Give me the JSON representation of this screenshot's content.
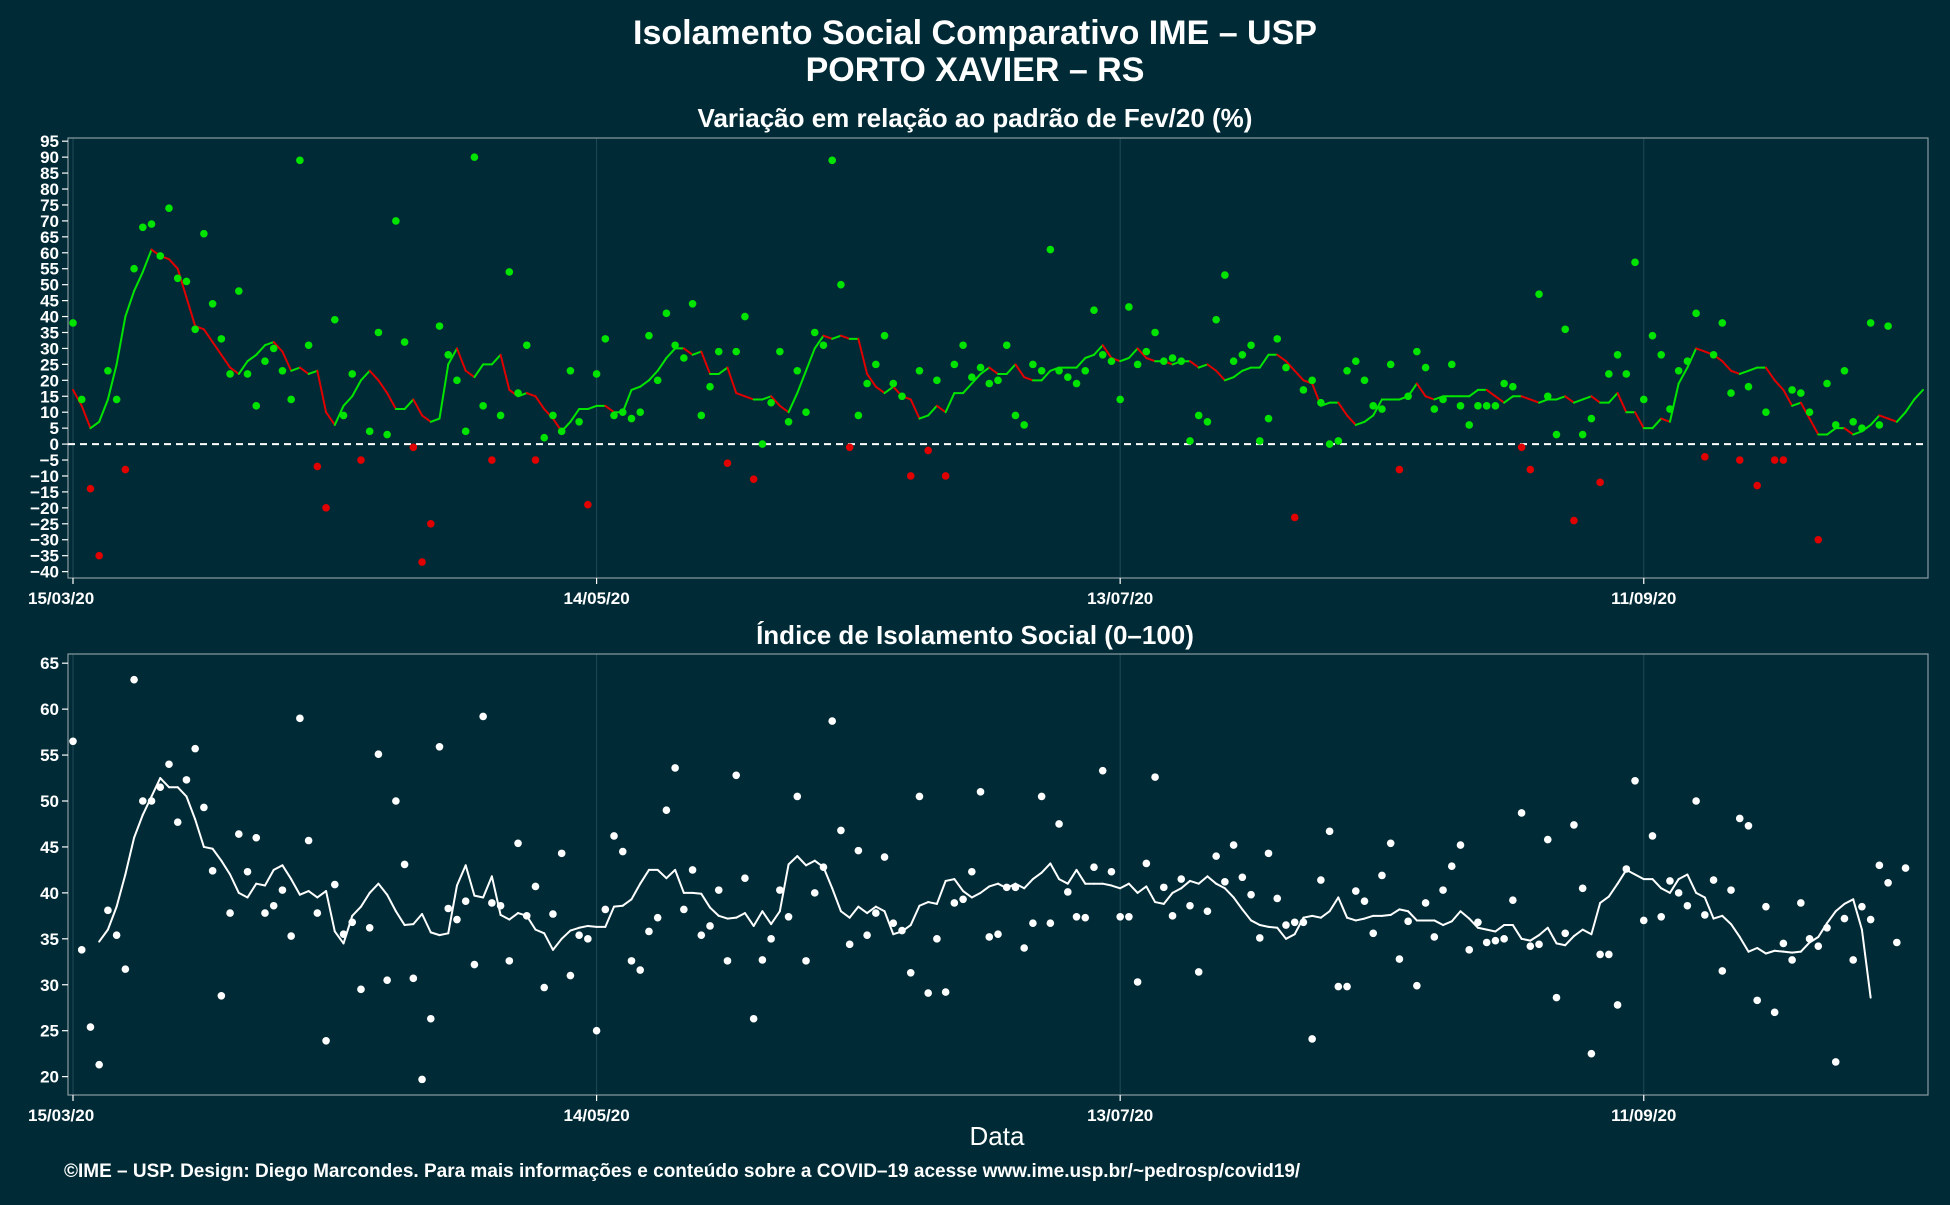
{
  "title_line1": "Isolamento Social Comparativo IME – USP",
  "title_line2": "PORTO XAVIER – RS",
  "caption": "©IME – USP. Design: Diego Marcondes. Para mais informações e conteúdo sobre a COVID–19 acesse www.ime.usp.br/~pedrosp/covid19/",
  "xlabel": "Data",
  "colors": {
    "background": "#002b36",
    "positive": "#00e400",
    "negative": "#e00000",
    "index": "#ffffff",
    "zero_line": "#ffffff"
  },
  "chart_data": [
    {
      "type": "scatter",
      "title": "Variação em relação ao padrão de Fev/20 (%)",
      "x_start": "15/03/20",
      "x_ticks": [
        "15/03/20",
        "14/05/20",
        "13/07/20",
        "11/09/20"
      ],
      "x_tick_day_index": [
        0,
        60,
        120,
        180
      ],
      "ylim": [
        -42,
        96
      ],
      "y_ticks": [
        -40,
        -35,
        -30,
        -25,
        -20,
        -15,
        -10,
        -5,
        0,
        5,
        10,
        15,
        20,
        25,
        30,
        35,
        40,
        45,
        50,
        55,
        60,
        65,
        70,
        75,
        80,
        85,
        90,
        95
      ],
      "reference_line": 0,
      "grid": true,
      "series": [
        {
          "kind": "points",
          "values": [
            38,
            14,
            -14,
            -35,
            23,
            14,
            -8,
            55,
            68,
            69,
            59,
            74,
            52,
            51,
            36,
            66,
            44,
            33,
            22,
            48,
            22,
            12,
            26,
            30,
            23,
            14,
            89,
            31,
            -7,
            -20,
            39,
            9,
            22,
            -5,
            4,
            35,
            3,
            70,
            32,
            -1,
            -37,
            -25,
            37,
            28,
            20,
            4,
            90,
            12,
            -5,
            9,
            54,
            16,
            31,
            -5,
            2,
            9,
            4,
            23,
            7,
            -19,
            22,
            33,
            9,
            10,
            8,
            10,
            34,
            20,
            41,
            31,
            27,
            44,
            9,
            18,
            29,
            -6,
            29,
            40,
            -11,
            0,
            13,
            29,
            7,
            23,
            10,
            35,
            31,
            89,
            50,
            -1,
            9,
            19,
            25,
            34,
            19,
            15,
            -10,
            23,
            -2,
            20,
            -10,
            25,
            31,
            21,
            24,
            19,
            20,
            31,
            9,
            6,
            25,
            23,
            61,
            23,
            21,
            19,
            23,
            42,
            28,
            26,
            14,
            43,
            25,
            29,
            35,
            26,
            27,
            26,
            1,
            9,
            7,
            39,
            53,
            26,
            28,
            31,
            1,
            8,
            33,
            24,
            -23,
            17,
            20,
            13,
            0,
            1,
            23,
            26,
            20,
            12,
            11,
            25,
            -8,
            15,
            29,
            24,
            11,
            14,
            25,
            12,
            6,
            12,
            12,
            12,
            19,
            18,
            -1,
            -8,
            47,
            15,
            3,
            36,
            -24,
            3,
            8,
            -12,
            22,
            28,
            22,
            57,
            14,
            34,
            28,
            11,
            23,
            26,
            41,
            -4,
            28,
            38,
            16,
            -5,
            18,
            -13,
            10,
            -5,
            -5,
            17,
            16,
            10,
            -30,
            19,
            6,
            23,
            7,
            5,
            38,
            6,
            37
          ]
        },
        {
          "kind": "moving_average",
          "values": [
            17,
            12,
            5,
            7,
            14,
            25,
            40,
            48,
            54,
            61,
            59,
            58,
            55,
            46,
            37,
            36,
            32,
            28,
            24,
            22,
            26,
            28,
            31,
            32,
            29,
            23,
            24,
            22,
            23,
            10,
            6,
            12,
            15,
            20,
            23,
            20,
            16,
            11,
            11,
            14,
            9,
            7,
            8,
            25,
            30,
            23,
            21,
            25,
            25,
            28,
            17,
            15,
            16,
            15,
            11,
            8,
            4,
            7,
            11,
            11,
            12,
            12,
            10,
            10,
            17,
            18,
            20,
            23,
            27,
            30,
            30,
            28,
            29,
            22,
            22,
            24,
            16,
            15,
            14,
            14,
            15,
            12,
            10,
            16,
            23,
            30,
            34,
            33,
            34,
            33,
            33,
            22,
            18,
            16,
            18,
            15,
            14,
            8,
            9,
            12,
            10,
            16,
            16,
            19,
            22,
            24,
            22,
            22,
            25,
            21,
            20,
            20,
            23,
            24,
            24,
            24,
            27,
            28,
            31,
            27,
            26,
            27,
            30,
            27,
            26,
            26,
            25,
            26,
            26,
            24,
            25,
            23,
            20,
            21,
            23,
            24,
            24,
            28,
            28,
            26,
            23,
            20,
            19,
            12,
            13,
            13,
            9,
            6,
            7,
            9,
            14,
            14,
            14,
            15,
            19,
            15,
            14,
            15,
            15,
            15,
            15,
            17,
            17,
            15,
            13,
            15,
            15,
            14,
            13,
            14,
            14,
            15,
            13,
            14,
            15,
            13,
            13,
            16,
            10,
            10,
            5,
            5,
            8,
            7,
            19,
            24,
            30,
            29,
            28,
            26,
            23,
            22,
            23,
            24,
            24,
            20,
            17,
            12,
            13,
            8,
            3,
            3,
            5,
            5,
            3,
            4,
            6,
            9,
            8,
            7,
            10,
            14,
            17
          ]
        }
      ]
    },
    {
      "type": "scatter",
      "title": "Índice de Isolamento Social (0–100)",
      "x_start": "15/03/20",
      "x_ticks": [
        "15/03/20",
        "14/05/20",
        "13/07/20",
        "11/09/20"
      ],
      "x_tick_day_index": [
        0,
        60,
        120,
        180
      ],
      "ylim": [
        18,
        66
      ],
      "y_ticks": [
        20,
        25,
        30,
        35,
        40,
        45,
        50,
        55,
        60,
        65
      ],
      "grid": true,
      "series": [
        {
          "kind": "points",
          "values": [
            56.5,
            33.8,
            25.4,
            21.3,
            38.1,
            35.4,
            31.7,
            63.2,
            50.0,
            50.0,
            51.5,
            54.0,
            47.7,
            52.3,
            55.7,
            49.3,
            42.4,
            28.8,
            37.8,
            46.4,
            42.3,
            46.0,
            37.8,
            38.6,
            40.3,
            35.3,
            59.0,
            45.7,
            37.8,
            23.9,
            40.9,
            35.5,
            36.8,
            29.5,
            36.2,
            55.1,
            30.5,
            50.0,
            43.1,
            30.7,
            19.7,
            26.3,
            55.9,
            38.3,
            37.1,
            39.1,
            32.2,
            59.2,
            38.9,
            38.6,
            32.6,
            45.4,
            37.5,
            40.7,
            29.7,
            37.7,
            44.3,
            31.0,
            35.4,
            35.0,
            25.0,
            38.2,
            46.2,
            44.5,
            32.6,
            31.6,
            35.8,
            37.3,
            49.0,
            53.6,
            38.2,
            42.5,
            35.4,
            36.4,
            40.3,
            32.6,
            52.8,
            41.6,
            26.3,
            32.7,
            35.0,
            40.3,
            37.4,
            50.5,
            32.6,
            40.0,
            42.8,
            58.7,
            46.8,
            34.4,
            44.6,
            35.4,
            37.8,
            43.9,
            36.7,
            35.9,
            31.3,
            50.5,
            29.1,
            35.0,
            29.2,
            38.9,
            39.3,
            42.3,
            51.0,
            35.2,
            35.5,
            40.6,
            40.6,
            34.0,
            36.7,
            50.5,
            36.7,
            47.5,
            40.1,
            37.4,
            37.3,
            42.8,
            53.3,
            42.3,
            37.4,
            37.4,
            30.3,
            43.2,
            52.6,
            40.6,
            37.5,
            41.5,
            38.6,
            31.4,
            38.0,
            44.0,
            41.2,
            45.2,
            41.7,
            39.8,
            35.1,
            44.3,
            39.4,
            36.5,
            36.8,
            36.8,
            24.1,
            41.4,
            46.7,
            29.8,
            29.8,
            40.2,
            39.1,
            35.6,
            41.9,
            45.4,
            32.8,
            36.9,
            29.9,
            38.9,
            35.2,
            40.3,
            42.9,
            45.2,
            33.8,
            36.8,
            34.6,
            34.8,
            35.0,
            39.2,
            48.7,
            34.2,
            34.4,
            45.8,
            28.6,
            35.6,
            47.4,
            40.5,
            22.5,
            33.3,
            33.3,
            27.8,
            42.6,
            52.2,
            37.0,
            46.2,
            37.4,
            41.3,
            40.0,
            38.6,
            50.0,
            37.6,
            41.4,
            31.5,
            40.3,
            48.1,
            47.3,
            28.3,
            38.5,
            27.0,
            34.5,
            32.7,
            38.9,
            35.0,
            34.2,
            36.2,
            21.6,
            37.2,
            32.7,
            38.5,
            37.1,
            43.0,
            41.1,
            34.6,
            42.7
          ]
        },
        {
          "kind": "moving_average",
          "values": [
            null,
            null,
            null,
            34.7,
            36.0,
            38.5,
            42.0,
            46.0,
            48.5,
            50.5,
            52.5,
            51.5,
            51.5,
            50.5,
            48.0,
            45.0,
            44.8,
            43.5,
            42.0,
            40.0,
            39.5,
            41.0,
            40.8,
            42.5,
            43.0,
            41.5,
            39.8,
            40.2,
            39.5,
            40.2,
            35.8,
            34.5,
            37.5,
            38.5,
            40.0,
            41.0,
            39.8,
            38.0,
            36.5,
            36.6,
            37.7,
            35.7,
            35.4,
            35.6,
            40.8,
            43.0,
            39.7,
            39.5,
            41.8,
            37.6,
            37.1,
            37.8,
            37.5,
            36.0,
            35.6,
            33.8,
            35.0,
            35.9,
            36.2,
            36.4,
            36.3,
            36.3,
            38.5,
            38.6,
            39.3,
            41.0,
            42.5,
            42.5,
            41.6,
            42.5,
            40.0,
            40.0,
            39.9,
            38.4,
            37.5,
            37.2,
            37.3,
            37.8,
            36.4,
            38.0,
            36.6,
            38.0,
            43.1,
            44.0,
            43.0,
            43.5,
            42.8,
            40.5,
            38.0,
            37.3,
            38.5,
            37.8,
            38.5,
            38.0,
            35.5,
            35.8,
            36.5,
            38.6,
            39.0,
            38.8,
            41.3,
            41.5,
            40.2,
            39.5,
            40.0,
            40.7,
            41.0,
            40.5,
            41.0,
            40.5,
            41.5,
            42.2,
            43.2,
            41.5,
            41.0,
            42.5,
            41.0,
            41.0,
            41.0,
            40.8,
            40.5,
            41.0,
            40.0,
            40.7,
            39.0,
            38.8,
            40.0,
            40.5,
            41.3,
            41.0,
            41.8,
            41.0,
            40.5,
            39.5,
            38.2,
            37.0,
            36.5,
            36.3,
            36.2,
            35.0,
            35.5,
            37.3,
            37.5,
            37.3,
            38.0,
            39.5,
            37.3,
            37.0,
            37.2,
            37.5,
            37.5,
            37.6,
            38.2,
            38.0,
            37.0,
            37.0,
            37.0,
            36.5,
            36.9,
            38.0,
            37.2,
            36.2,
            36.0,
            35.8,
            36.5,
            36.5,
            35.0,
            34.8,
            35.4,
            36.2,
            34.5,
            34.3,
            35.3,
            36.0,
            35.5,
            38.9,
            39.6,
            41.0,
            42.5,
            42.0,
            41.5,
            41.5,
            40.5,
            40.0,
            41.5,
            42.0,
            40.0,
            39.5,
            37.2,
            37.5,
            36.6,
            35.2,
            33.6,
            34.0,
            33.4,
            33.7,
            33.6,
            33.5,
            33.6,
            34.6,
            35.2,
            36.7,
            38.0,
            38.8,
            39.3,
            36.0,
            28.6
          ]
        }
      ]
    }
  ]
}
